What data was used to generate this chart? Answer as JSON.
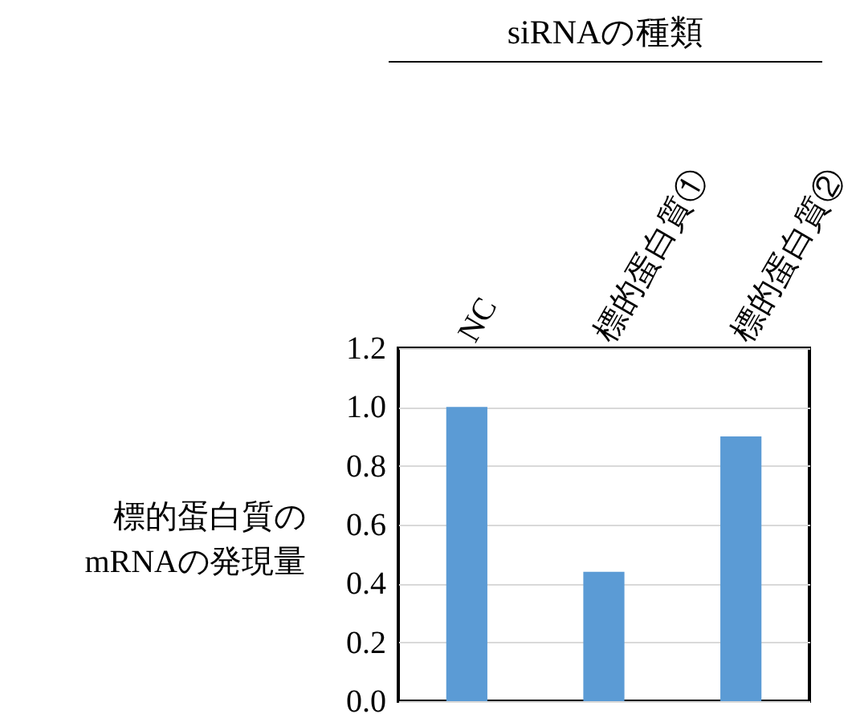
{
  "chart_data": {
    "type": "bar",
    "xlabel": "siRNAの種類",
    "ylabel": "標的蛋白質の\nmRNAの発現量",
    "categories": [
      "NC",
      "標的蛋白質①",
      "標的蛋白質②"
    ],
    "values": [
      1.0,
      0.44,
      0.9
    ],
    "color": "#5b9bd5",
    "ylim": [
      0,
      1.2
    ],
    "yticks": [
      {
        "value": 0,
        "label": "0.0"
      },
      0.2,
      0.4,
      0.6,
      0.8,
      {
        "value": 1,
        "label": "1.0"
      },
      1.2
    ],
    "grid": "y"
  }
}
